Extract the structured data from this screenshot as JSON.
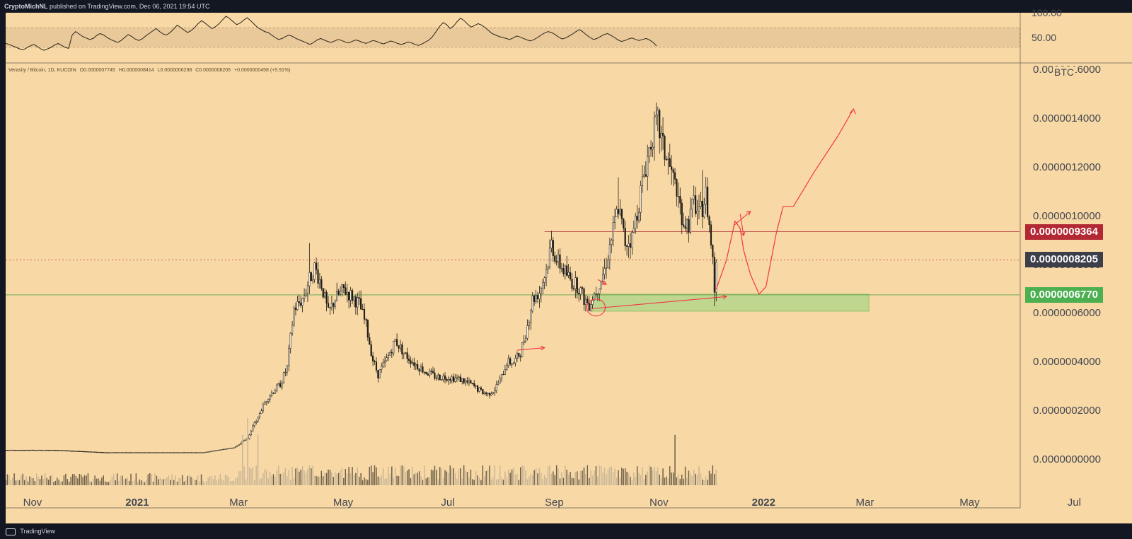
{
  "header": {
    "author": "CryptoMichNL",
    "published_text": "published on TradingView.com, Dec 06, 2021 19:54 UTC"
  },
  "footer": {
    "brand": "TradingView"
  },
  "symbol_info": {
    "name": "Verasity / Bitcoin, 1D, KUCOIN",
    "open": "O0.0000007745",
    "high": "H0.0000008414",
    "low": "L0.0000006298",
    "close": "C0.0000008205",
    "change": "+0.0000000458 (+5.91%)"
  },
  "colors": {
    "background": "#f8d9a6",
    "frame": "#131722",
    "annotation": "#f23645",
    "resistance_tag": "#b22833",
    "last_price_tag": "#3c3f4a",
    "support_tag": "#4caf50",
    "support_zone": "#b7d58b"
  },
  "chart_data": [
    {
      "type": "line",
      "title": "",
      "panel": "oscillator",
      "y_ticks": [
        "100.00",
        "50.00"
      ],
      "ylim": [
        0,
        100
      ],
      "band": [
        30,
        70
      ],
      "series": [
        {
          "values": [
            38,
            36,
            33,
            30,
            27,
            25,
            29,
            33,
            36,
            32,
            27,
            24,
            27,
            30,
            35,
            38,
            34,
            30,
            28,
            55,
            62,
            57,
            52,
            49,
            46,
            48,
            54,
            58,
            55,
            50,
            46,
            43,
            40,
            44,
            50,
            56,
            52,
            47,
            44,
            47,
            53,
            58,
            63,
            68,
            62,
            57,
            55,
            60,
            67,
            75,
            70,
            65,
            60,
            64,
            70,
            78,
            84,
            79,
            73,
            68,
            72,
            78,
            86,
            93,
            88,
            82,
            76,
            79,
            85,
            90,
            84,
            77,
            70,
            66,
            62,
            60,
            55,
            50,
            46,
            48,
            52,
            55,
            52,
            48,
            45,
            42,
            39,
            36,
            40,
            45,
            48,
            45,
            42,
            40,
            43,
            46,
            44,
            41,
            39,
            42,
            45,
            43,
            40,
            38,
            41,
            44,
            42,
            39,
            37,
            40,
            43,
            41,
            38,
            36,
            38,
            41,
            39,
            36,
            34,
            37,
            41,
            45,
            52,
            62,
            72,
            80,
            76,
            68,
            73,
            82,
            89,
            84,
            77,
            71,
            74,
            78,
            75,
            70,
            64,
            58,
            55,
            52,
            50,
            48,
            46,
            49,
            53,
            51,
            48,
            45,
            43,
            46,
            50,
            55,
            59,
            62,
            60,
            56,
            51,
            47,
            49,
            53,
            57,
            62,
            66,
            61,
            55,
            50,
            46,
            48,
            52,
            56,
            58,
            54,
            50,
            45,
            42,
            44,
            47,
            49,
            46,
            44,
            46,
            48,
            45,
            40,
            33
          ]
        }
      ]
    },
    {
      "type": "candlestick",
      "title": "",
      "panel": "price",
      "y_ticks": [
        "0.0000016000",
        "0.0000014000",
        "0.0000012000",
        "0.0000010000",
        "0.0000008000",
        "0.0000006000",
        "0.0000004000",
        "0.0000002000",
        "0.0000000000"
      ],
      "x_ticks": [
        "Nov",
        "2021",
        "Mar",
        "May",
        "Jul",
        "Sep",
        "Nov",
        "2022",
        "Mar",
        "May",
        "Jul"
      ],
      "ylim": [
        0,
        1.6e-06
      ],
      "xlim": [
        "2020-10-18",
        "2022-08-02"
      ],
      "axis_currency": "BTC",
      "close": [
        [
          "2020-10-18",
          4e-08
        ],
        [
          "2020-11-15",
          4e-08
        ],
        [
          "2020-12-15",
          3e-08
        ],
        [
          "2021-01-15",
          3e-08
        ],
        [
          "2021-02-10",
          3e-08
        ],
        [
          "2021-02-28",
          5e-08
        ],
        [
          "2021-03-08",
          9e-08
        ],
        [
          "2021-03-14",
          1.8e-07
        ],
        [
          "2021-03-20",
          2.6e-07
        ],
        [
          "2021-03-27",
          3.1e-07
        ],
        [
          "2021-03-31",
          3.8e-07
        ],
        [
          "2021-04-04",
          6.2e-07
        ],
        [
          "2021-04-09",
          6.6e-07
        ],
        [
          "2021-04-13",
          7.4e-07
        ],
        [
          "2021-04-16",
          7.9e-07
        ],
        [
          "2021-04-20",
          7.2e-07
        ],
        [
          "2021-04-24",
          6e-07
        ],
        [
          "2021-04-28",
          6.6e-07
        ],
        [
          "2021-05-03",
          7e-07
        ],
        [
          "2021-05-08",
          6.7e-07
        ],
        [
          "2021-05-12",
          6.4e-07
        ],
        [
          "2021-05-16",
          5.5e-07
        ],
        [
          "2021-05-20",
          4.1e-07
        ],
        [
          "2021-05-23",
          3.5e-07
        ],
        [
          "2021-05-28",
          4.1e-07
        ],
        [
          "2021-06-02",
          4.9e-07
        ],
        [
          "2021-06-08",
          4.3e-07
        ],
        [
          "2021-06-14",
          3.9e-07
        ],
        [
          "2021-06-20",
          3.6e-07
        ],
        [
          "2021-06-26",
          3.4e-07
        ],
        [
          "2021-07-03",
          3.4e-07
        ],
        [
          "2021-07-10",
          3.3e-07
        ],
        [
          "2021-07-16",
          3.1e-07
        ],
        [
          "2021-07-22",
          2.8e-07
        ],
        [
          "2021-07-26",
          2.7e-07
        ],
        [
          "2021-07-30",
          2.9e-07
        ],
        [
          "2021-08-03",
          3.4e-07
        ],
        [
          "2021-08-06",
          4e-07
        ],
        [
          "2021-08-10",
          4e-07
        ],
        [
          "2021-08-14",
          4.4e-07
        ],
        [
          "2021-08-18",
          5.5e-07
        ],
        [
          "2021-08-21",
          6.6e-07
        ],
        [
          "2021-08-25",
          6.9e-07
        ],
        [
          "2021-08-29",
          7.8e-07
        ],
        [
          "2021-09-01",
          8.9e-07
        ],
        [
          "2021-09-04",
          8.2e-07
        ],
        [
          "2021-09-09",
          7.7e-07
        ],
        [
          "2021-09-13",
          7.3e-07
        ],
        [
          "2021-09-17",
          7.1e-07
        ],
        [
          "2021-09-20",
          6.6e-07
        ],
        [
          "2021-09-23",
          6.4e-07
        ],
        [
          "2021-09-28",
          7.1e-07
        ],
        [
          "2021-10-02",
          7.8e-07
        ],
        [
          "2021-10-06",
          9.1e-07
        ],
        [
          "2021-10-10",
          1.04e-06
        ],
        [
          "2021-10-14",
          8.9e-07
        ],
        [
          "2021-10-18",
          9.1e-07
        ],
        [
          "2021-10-22",
          1.06e-06
        ],
        [
          "2021-10-26",
          1.21e-06
        ],
        [
          "2021-10-30",
          1.34e-06
        ],
        [
          "2021-11-02",
          1.38e-06
        ],
        [
          "2021-11-05",
          1.28e-06
        ],
        [
          "2021-11-09",
          1.2e-06
        ],
        [
          "2021-11-13",
          1.1e-06
        ],
        [
          "2021-11-17",
          9.8e-07
        ],
        [
          "2021-11-20",
          9.7e-07
        ],
        [
          "2021-11-23",
          1.06e-06
        ],
        [
          "2021-11-26",
          1e-06
        ],
        [
          "2021-11-28",
          1.04e-06
        ],
        [
          "2021-11-30",
          1.09e-06
        ],
        [
          "2021-12-02",
          9.6e-07
        ],
        [
          "2021-12-04",
          8.2e-07
        ],
        [
          "2021-12-05",
          7e-07
        ],
        [
          "2021-12-06",
          8.2e-07
        ]
      ],
      "high": [
        [
          "2021-04-13",
          8.9e-07
        ],
        [
          "2021-09-01",
          9.4e-07
        ],
        [
          "2021-10-10",
          1.16e-06
        ],
        [
          "2021-11-02",
          1.45e-06
        ],
        [
          "2021-11-28",
          1.19e-06
        ]
      ],
      "low": [
        [
          "2021-07-26",
          2.6e-07
        ],
        [
          "2021-09-23",
          6.1e-07
        ],
        [
          "2021-12-05",
          6.3e-07
        ]
      ],
      "volume": [
        [
          "2021-03-05",
          3e-07
        ],
        [
          "2021-03-08",
          4e-07
        ],
        [
          "2021-03-14",
          3e-07
        ],
        [
          "2021-11-12",
          3e-07
        ]
      ],
      "horizontal_levels": [
        {
          "label": "0.0000009364",
          "value": 9.364e-07,
          "style": "resistance"
        },
        {
          "label": "0.0000008205",
          "value": 8.205e-07,
          "style": "last"
        },
        {
          "label": "0.0000006770",
          "value": 6.77e-07,
          "style": "support"
        }
      ],
      "support_zone": {
        "from": 6.1e-07,
        "to": 6.8e-07,
        "start": "2021-09-25",
        "end": "2022-03-05"
      },
      "projected_path": [
        [
          "2021-12-06",
          7e-07
        ],
        [
          "2021-12-12",
          8.2e-07
        ],
        [
          "2021-12-17",
          9.8e-07
        ],
        [
          "2021-12-20",
          9.5e-07
        ],
        [
          "2021-12-22",
          8.6e-07
        ],
        [
          "2021-12-26",
          7.6e-07
        ],
        [
          "2021-12-31",
          6.8e-07
        ],
        [
          "2022-01-04",
          7.1e-07
        ],
        [
          "2022-01-10",
          9.3e-07
        ],
        [
          "2022-01-14",
          1.04e-06
        ],
        [
          "2022-01-20",
          1.04e-06
        ],
        [
          "2022-02-01",
          1.18e-06
        ],
        [
          "2022-02-15",
          1.33e-06
        ],
        [
          "2022-02-24",
          1.44e-06
        ]
      ]
    }
  ]
}
